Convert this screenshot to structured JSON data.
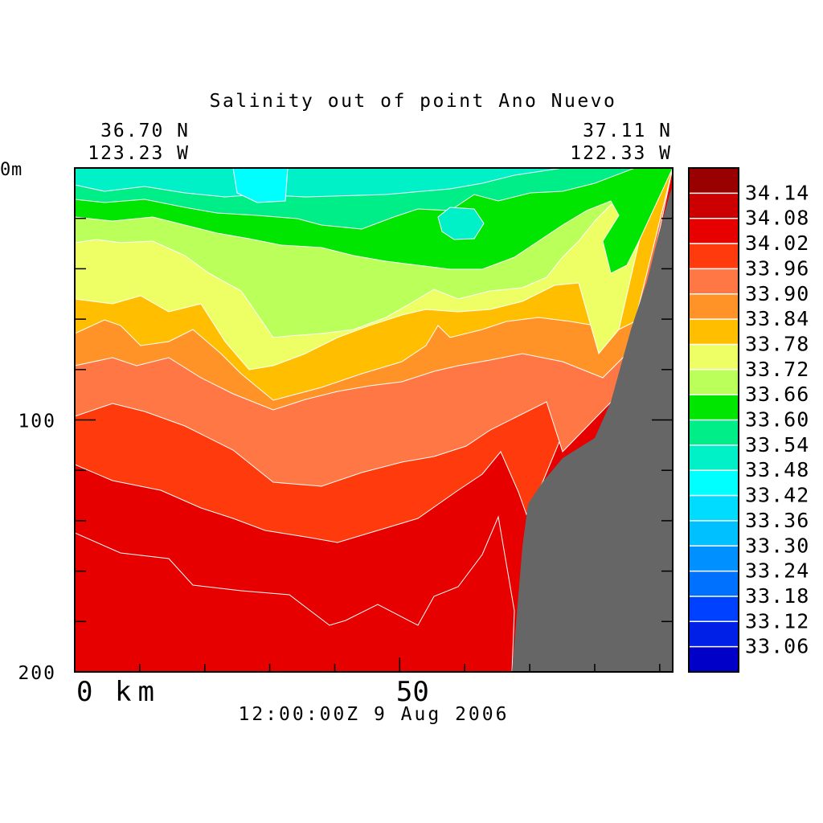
{
  "chart_data": {
    "type": "heatmap",
    "title": "Salinity out of point Ano Nuevo",
    "start_location": {
      "lat": "36.70 N",
      "lon": "123.23 W"
    },
    "end_location": {
      "lat": "37.11 N",
      "lon": "122.33 W"
    },
    "x_axis": {
      "unit_label": "km",
      "range": [
        0,
        92
      ],
      "major_ticks": [
        0,
        50
      ],
      "minor_tick_step": 10
    },
    "y_axis": {
      "unit_label": "m",
      "range": [
        0,
        200
      ],
      "inverted": true,
      "major_ticks": [
        0,
        100,
        200
      ],
      "minor_tick_step": 20
    },
    "timestamp": "12:00:00Z   9 Aug 2006",
    "colorbar": {
      "labels": [
        "34.14",
        "34.08",
        "34.02",
        "33.96",
        "33.90",
        "33.84",
        "33.78",
        "33.72",
        "33.66",
        "33.60",
        "33.54",
        "33.48",
        "33.42",
        "33.36",
        "33.30",
        "33.24",
        "33.18",
        "33.12",
        "33.06"
      ],
      "colors": [
        "#990000",
        "#cc0000",
        "#e60000",
        "#ff3a0c",
        "#ff7744",
        "#ff9328",
        "#ffbf00",
        "#eeff66",
        "#bbff5a",
        "#00e600",
        "#00ee88",
        "#00f0c8",
        "#00ffff",
        "#00dcff",
        "#00c0ff",
        "#0090ff",
        "#0070ff",
        "#0040ff",
        "#0020e8",
        "#0000c8"
      ]
    },
    "bathymetry_color": "#666666",
    "salinity_zones": [
      {
        "level": "33.42",
        "color": "#00ffff"
      },
      {
        "level": "33.48",
        "color": "#00f0c8"
      },
      {
        "level": "33.54",
        "color": "#00ee88"
      },
      {
        "level": "33.60",
        "color": "#00e600"
      },
      {
        "level": "33.66",
        "color": "#bbff5a"
      },
      {
        "level": "33.72",
        "color": "#eeff66"
      },
      {
        "level": "33.78",
        "color": "#ffbf00"
      },
      {
        "level": "33.84",
        "color": "#ff9328"
      },
      {
        "level": "33.90",
        "color": "#ff7744"
      },
      {
        "level": "33.96",
        "color": "#ff3a0c"
      },
      {
        "level": "34.02",
        "color": "#e60000"
      }
    ]
  }
}
